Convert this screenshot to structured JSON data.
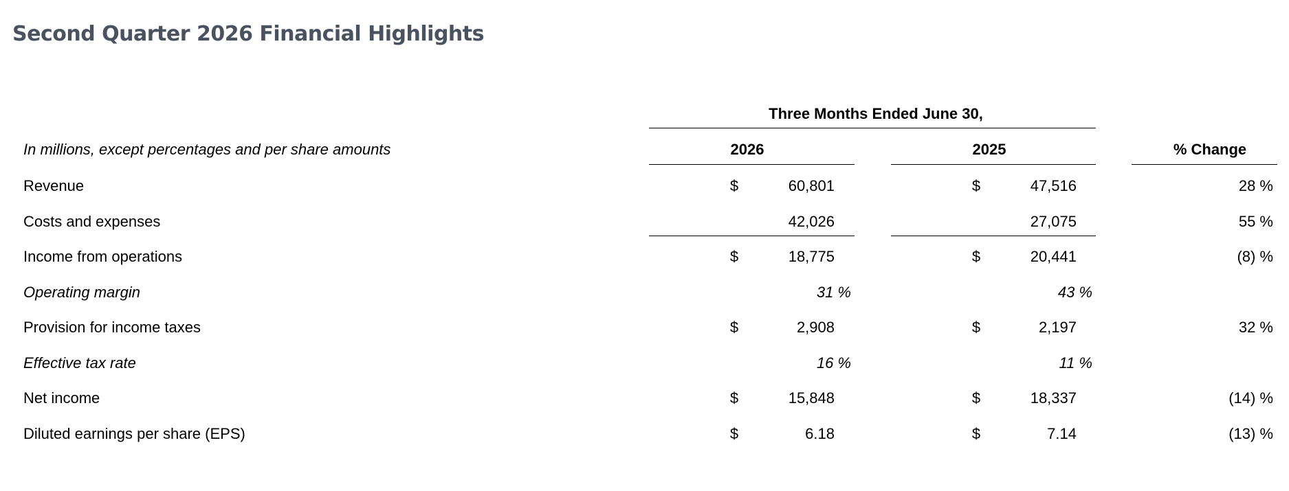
{
  "title": "Second Quarter 2026 Financial Highlights",
  "table": {
    "group_header": "Three Months Ended June 30,",
    "units_note": "In millions, except percentages and per share amounts",
    "columns": [
      "2026",
      "2025",
      "% Change"
    ],
    "rows": [
      {
        "label": "Revenue",
        "a_cur": "$",
        "a": "60,801",
        "b_cur": "$",
        "b": "47,516",
        "change": "28 %"
      },
      {
        "label": "Costs and expenses",
        "a": "42,026",
        "b": "27,075",
        "change": "55 %",
        "rule_below": true
      },
      {
        "label": "Income from operations",
        "a_cur": "$",
        "a": "18,775",
        "b_cur": "$",
        "b": "20,441",
        "change": "(8) %"
      },
      {
        "label": "Operating margin",
        "a": "31 %",
        "b": "43 %",
        "style": "italic"
      },
      {
        "label": "Provision for income taxes",
        "a_cur": "$",
        "a": "2,908",
        "b_cur": "$",
        "b": "2,197",
        "change": "32 %"
      },
      {
        "label": "Effective tax rate",
        "a": "16 %",
        "b": "11 %",
        "style": "italic"
      },
      {
        "label": "Net income",
        "a_cur": "$",
        "a": "15,848",
        "b_cur": "$",
        "b": "18,337",
        "change": "(14) %"
      },
      {
        "label": "Diluted earnings per share (EPS)",
        "a_cur": "$",
        "a": "6.18",
        "b_cur": "$",
        "b": "7.14",
        "change": "(13) %"
      }
    ]
  }
}
